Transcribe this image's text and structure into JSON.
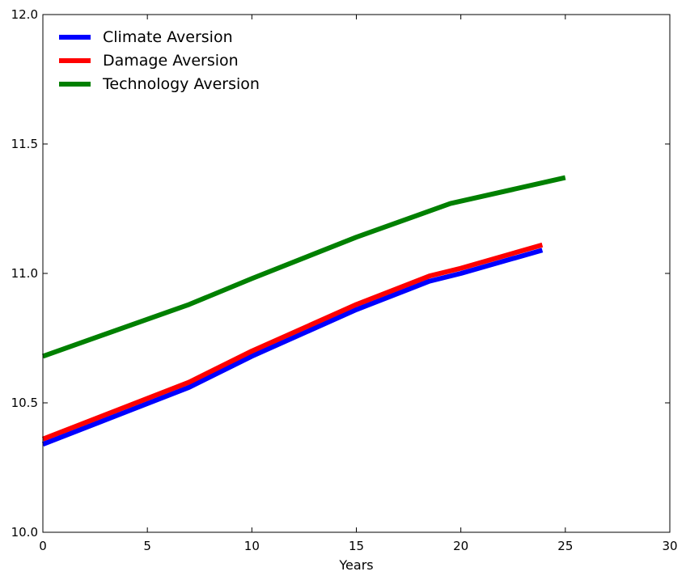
{
  "chart_data": {
    "type": "line",
    "title": "",
    "xlabel": "Years",
    "ylabel": "",
    "xlim": [
      0,
      30
    ],
    "ylim": [
      10.0,
      12.0
    ],
    "x_ticks": [
      0,
      5,
      10,
      15,
      20,
      25,
      30
    ],
    "y_ticks": [
      10.0,
      10.5,
      11.0,
      11.5,
      12.0
    ],
    "x_tick_labels": [
      "0",
      "5",
      "10",
      "15",
      "20",
      "25",
      "30"
    ],
    "y_tick_labels": [
      "10.0",
      "10.5",
      "11.0",
      "11.5",
      "12.0"
    ],
    "grid": false,
    "legend_position": "top-left",
    "series": [
      {
        "name": "Climate Aversion",
        "color": "#0000ff",
        "x": [
          0,
          7,
          10,
          15,
          18.5,
          20,
          23.9
        ],
        "y": [
          10.34,
          10.56,
          10.68,
          10.86,
          10.97,
          11.0,
          11.09
        ]
      },
      {
        "name": "Damage Aversion",
        "color": "#ff0000",
        "x": [
          0,
          7,
          10,
          15,
          18.5,
          20,
          23.9
        ],
        "y": [
          10.36,
          10.58,
          10.7,
          10.88,
          10.99,
          11.02,
          11.11
        ]
      },
      {
        "name": "Technology Aversion",
        "color": "#008000",
        "x": [
          0,
          7,
          10,
          15,
          19.5,
          25
        ],
        "y": [
          10.68,
          10.88,
          10.98,
          11.14,
          11.27,
          11.37
        ]
      }
    ]
  }
}
